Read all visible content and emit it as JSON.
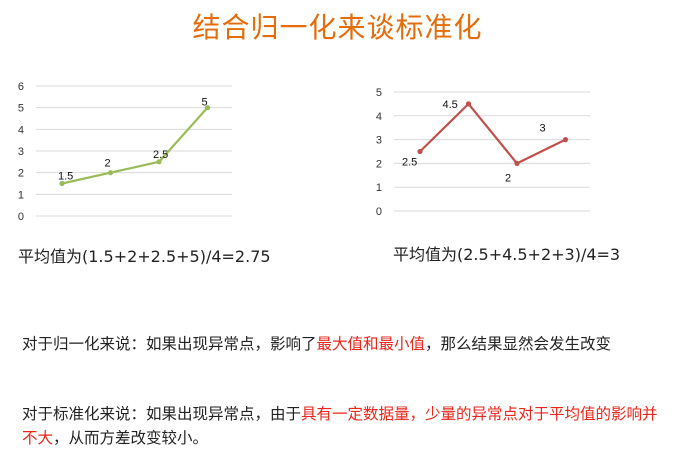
{
  "title": "结合归一化来谈标准化",
  "chart_data": [
    {
      "type": "line",
      "x": [
        1,
        2,
        3,
        4
      ],
      "values": [
        1.5,
        2,
        2.5,
        5
      ],
      "data_labels": [
        "1.5",
        "2",
        "2.5",
        "5"
      ],
      "ylim": [
        0,
        6
      ],
      "yticks": [
        "0",
        "1",
        "2",
        "3",
        "4",
        "5",
        "6"
      ],
      "grid": true,
      "color": "#9bbb59"
    },
    {
      "type": "line",
      "x": [
        1,
        2,
        3,
        4
      ],
      "values": [
        2.5,
        4.5,
        2,
        3
      ],
      "data_labels": [
        "2.5",
        "4.5",
        "2",
        "3"
      ],
      "ylim": [
        0,
        5
      ],
      "yticks": [
        "0",
        "1",
        "2",
        "3",
        "4",
        "5"
      ],
      "grid": true,
      "color": "#c0504d"
    }
  ],
  "captions": {
    "left": "平均值为(1.5+2+2.5+5)/4=2.75",
    "right": "平均值为(2.5+4.5+2+3)/4=3"
  },
  "para1": {
    "prefix": "对于归一化来说：如果出现异常点，影响了",
    "highlight": "最大值和最小值",
    "suffix": "，那么结果显然会发生改变"
  },
  "para2": {
    "prefix": "对于标准化来说：如果出现异常点，由于",
    "highlight": "具有一定数据量，少量的异常点对于平均值的影响并不大",
    "suffix": "，从而方差改变较小。"
  },
  "colors": {
    "title": "#e46c0a",
    "highlight": "#e8261b"
  }
}
